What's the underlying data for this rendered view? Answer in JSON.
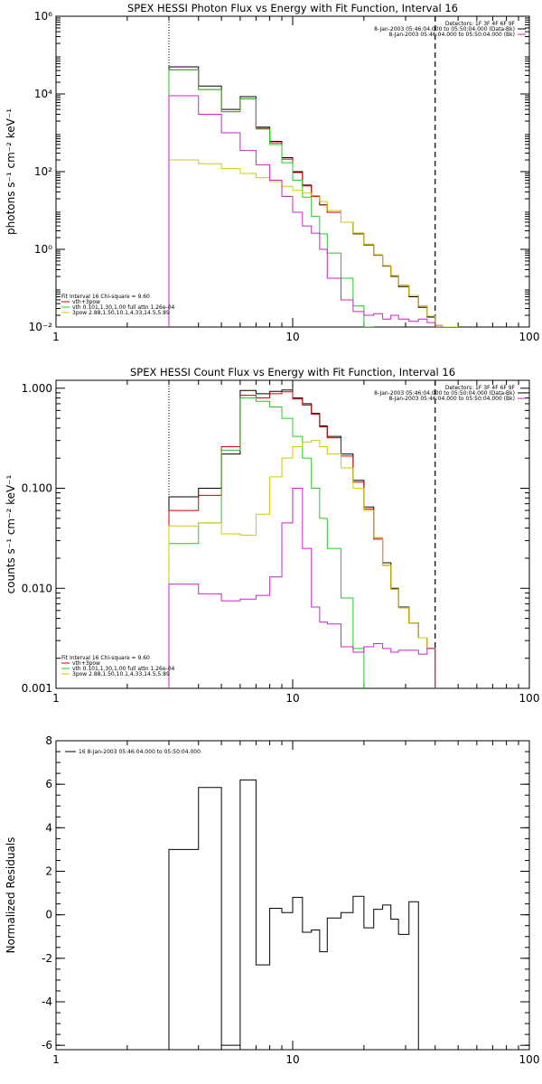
{
  "chart_data": [
    {
      "type": "line",
      "title": "SPEX HESSI Photon Flux vs Energy with Fit Function, Interval 16",
      "ylabel": "photons s⁻¹ cm⁻² keV⁻¹",
      "xlabel": "",
      "x_scale": "log",
      "y_scale": "log",
      "xlim": [
        1,
        100
      ],
      "ylim": [
        0.01,
        1000000
      ],
      "x_ticks": [
        1,
        10,
        100
      ],
      "x_tick_labels": [
        "1",
        "10",
        "100"
      ],
      "y_ticks": [
        0.01,
        1,
        100,
        10000,
        1000000
      ],
      "y_tick_labels": [
        "10⁻²",
        "10⁰",
        "10²",
        "10⁴",
        "10⁶"
      ],
      "vlines": [
        {
          "x": 3,
          "style": "dotted"
        },
        {
          "x": 40,
          "style": "dashed"
        }
      ],
      "legend_top_right": [
        {
          "text": "Detectors: 1F 3F 4F 6F 9F",
          "color": ""
        },
        {
          "text": "8-Jan-2003 05:46:04.000 to 05:50:04.000 (Data-Bk)",
          "color": "#000000"
        },
        {
          "text": "8-Jan-2003 05:46:04.000 to 05:50:04.000 (Bk)",
          "color": "#cc22cc"
        }
      ],
      "legend_bottom_left": [
        {
          "text": "Fit Interval 16   Chi-square = 9.60",
          "color": ""
        },
        {
          "text": "vth+3pow",
          "color": "#cc0000"
        },
        {
          "text": "vth 0.101,1.30,1.00  full attn 1.26e-04",
          "color": "#22cc22"
        },
        {
          "text": "3pow 2.88,1.50,10.1,4.33,14.5,5.89",
          "color": "#cccc00"
        }
      ],
      "bin_edges": [
        3,
        4,
        5,
        6,
        7,
        8,
        9,
        10,
        11,
        12,
        13,
        14,
        16,
        18,
        20,
        22,
        24,
        26,
        28,
        31,
        34,
        37,
        40,
        43,
        46,
        50
      ],
      "series": [
        {
          "name": "8-Jan-2003 05:46:04.000 to 05:50:04.000 (Data-Bk)",
          "color": "#000000",
          "values": [
            50000,
            16000,
            4000,
            8500,
            1400,
            600,
            230,
            100,
            45,
            24,
            14,
            9,
            5,
            2.5,
            1.3,
            0.7,
            0.37,
            0.2,
            0.11,
            0.06,
            0.032,
            0.018,
            0.01
          ]
        },
        {
          "name": "vth+3pow",
          "color": "#cc0000",
          "values": [
            42000,
            13000,
            3500,
            7500,
            1300,
            550,
            210,
            95,
            43,
            23,
            14,
            9,
            5,
            2.6,
            1.35,
            0.72,
            0.38,
            0.21,
            0.12,
            0.065,
            0.035,
            0.019,
            0.011
          ]
        },
        {
          "name": "vth 0.101,1.30,1.00  full attn 1.26e-04",
          "color": "#22cc22",
          "values": [
            42000,
            13000,
            3500,
            7500,
            1250,
            500,
            170,
            60,
            22,
            7,
            2.5,
            0.8,
            0.18,
            0.035,
            0.006
          ]
        },
        {
          "name": "3pow 2.88,1.50,10.1,4.33,14.5,5.89",
          "color": "#cccc00",
          "values": [
            200,
            160,
            120,
            90,
            70,
            55,
            42,
            33,
            28,
            24,
            17,
            10,
            5,
            2.6,
            1.35,
            0.72,
            0.38,
            0.21,
            0.12,
            0.065,
            0.035,
            0.019,
            0.011,
            0.006,
            0.004
          ]
        },
        {
          "name": "8-Jan-2003 05:46:04.000 to 05:50:04.000 (Bk)",
          "color": "#cc22cc",
          "values": [
            9000,
            3000,
            1000,
            350,
            150,
            60,
            23,
            9,
            4,
            2.6,
            1.0,
            0.18,
            0.05,
            0.025,
            0.02,
            0.022,
            0.016,
            0.02,
            0.016,
            0.014,
            0.016,
            0.013,
            0.01
          ]
        }
      ]
    },
    {
      "type": "line",
      "title": "SPEX HESSI Count Flux vs Energy with Fit Function, Interval 16",
      "ylabel": "counts s⁻¹ cm⁻² keV⁻¹",
      "xlabel": "",
      "x_scale": "log",
      "y_scale": "log",
      "xlim": [
        1,
        100
      ],
      "ylim": [
        0.001,
        1.2
      ],
      "x_ticks": [
        1,
        10,
        100
      ],
      "x_tick_labels": [
        "1",
        "10",
        "100"
      ],
      "y_ticks": [
        0.001,
        0.01,
        0.1,
        1
      ],
      "y_tick_labels": [
        "0.001",
        "0.010",
        "0.100",
        "1.000"
      ],
      "vlines": [
        {
          "x": 3,
          "style": "dotted"
        },
        {
          "x": 40,
          "style": "dashed"
        }
      ],
      "legend_top_right": [
        {
          "text": "Detectors: 1F 3F 4F 6F 9F",
          "color": ""
        },
        {
          "text": "8-Jan-2003 05:46:04.000 to 05:50:04.000 (Data-Bk)",
          "color": "#000000"
        },
        {
          "text": "8-Jan-2003 05:46:04.000 to 05:50:04.000 (Bk)",
          "color": "#cc22cc"
        }
      ],
      "legend_bottom_left": [
        {
          "text": "Fit Interval 16   Chi-square = 9.60",
          "color": ""
        },
        {
          "text": "vth+3pow",
          "color": "#cc0000"
        },
        {
          "text": "vth 0.101,1.30,1.00  full attn 1.26e-04",
          "color": "#22cc22"
        },
        {
          "text": "3pow 2.88,1.50,10.1,4.33,14.5,5.89",
          "color": "#cccc00"
        }
      ],
      "bin_edges": [
        3,
        4,
        5,
        6,
        7,
        8,
        9,
        10,
        11,
        12,
        13,
        14,
        16,
        18,
        20,
        22,
        24,
        26,
        28,
        31,
        34,
        37,
        40,
        43,
        46,
        50
      ],
      "series": [
        {
          "name": "8-Jan-2003 05:46:04.000 to 05:50:04.000 (Data-Bk)",
          "color": "#000000",
          "values": [
            0.082,
            0.1,
            0.22,
            0.95,
            0.88,
            0.93,
            0.96,
            0.8,
            0.7,
            0.56,
            0.42,
            0.33,
            0.22,
            0.12,
            0.065,
            0.032,
            0.018,
            0.01,
            0.0065,
            0.0045,
            0.0032,
            0.0025
          ]
        },
        {
          "name": "vth+3pow",
          "color": "#cc0000",
          "values": [
            0.06,
            0.085,
            0.26,
            0.85,
            0.8,
            0.88,
            0.92,
            0.78,
            0.68,
            0.55,
            0.41,
            0.32,
            0.21,
            0.115,
            0.062,
            0.031,
            0.017,
            0.0098,
            0.0064,
            0.0045,
            0.0032,
            0.0025
          ]
        },
        {
          "name": "vth 0.101,1.30,1.00  full attn 1.26e-04",
          "color": "#22cc22",
          "values": [
            0.028,
            0.045,
            0.24,
            0.8,
            0.74,
            0.65,
            0.5,
            0.33,
            0.2,
            0.1,
            0.05,
            0.025,
            0.008,
            0.0025
          ]
        },
        {
          "name": "3pow 2.88,1.50,10.1,4.33,14.5,5.89",
          "color": "#cccc00",
          "values": [
            0.042,
            0.045,
            0.035,
            0.034,
            0.055,
            0.13,
            0.2,
            0.26,
            0.29,
            0.3,
            0.26,
            0.22,
            0.16,
            0.1,
            0.06,
            0.032,
            0.017,
            0.0098,
            0.0064,
            0.0045,
            0.0032,
            0.0025
          ]
        },
        {
          "name": "8-Jan-2003 05:46:04.000 to 05:50:04.000 (Bk)",
          "color": "#cc22cc",
          "values": [
            0.011,
            0.0088,
            0.0075,
            0.0078,
            0.0085,
            0.013,
            0.045,
            0.1,
            0.025,
            0.0065,
            0.0046,
            0.0044,
            0.0026,
            0.0023,
            0.0026,
            0.0028,
            0.0025,
            0.0023,
            0.0024,
            0.0024,
            0.0022,
            0.0025
          ]
        }
      ]
    },
    {
      "type": "line",
      "title": "",
      "ylabel": "Normalized Residuals",
      "xlabel": "",
      "x_scale": "log",
      "y_scale": "linear",
      "xlim": [
        1,
        100
      ],
      "ylim": [
        -6.2,
        8
      ],
      "x_ticks": [
        1,
        10,
        100
      ],
      "x_tick_labels": [
        "1",
        "10",
        "100"
      ],
      "y_ticks": [
        -6,
        -4,
        -2,
        0,
        2,
        4,
        6,
        8
      ],
      "y_tick_labels": [
        "-6",
        "-4",
        "-2",
        "0",
        "2",
        "4",
        "6",
        "8"
      ],
      "legend_top_left": [
        {
          "text": "16   8-Jan-2003 05:46:04.000 to 05:50:04.000",
          "color": "#000000"
        }
      ],
      "bin_edges": [
        3,
        4,
        5,
        6,
        7,
        8,
        9,
        10,
        11,
        12,
        13,
        14,
        16,
        18,
        20,
        22,
        24,
        26,
        28,
        31,
        34,
        37,
        40
      ],
      "series": [
        {
          "name": "16   8-Jan-2003 05:46:04.000 to 05:50:04.000",
          "color": "#000000",
          "values": [
            3.0,
            5.85,
            -6.0,
            6.2,
            -2.3,
            0.3,
            0.1,
            0.8,
            -0.8,
            -0.7,
            -1.7,
            -0.15,
            0.1,
            0.85,
            -0.6,
            0.25,
            0.45,
            -0.2,
            -0.9,
            0.6
          ]
        }
      ]
    }
  ]
}
